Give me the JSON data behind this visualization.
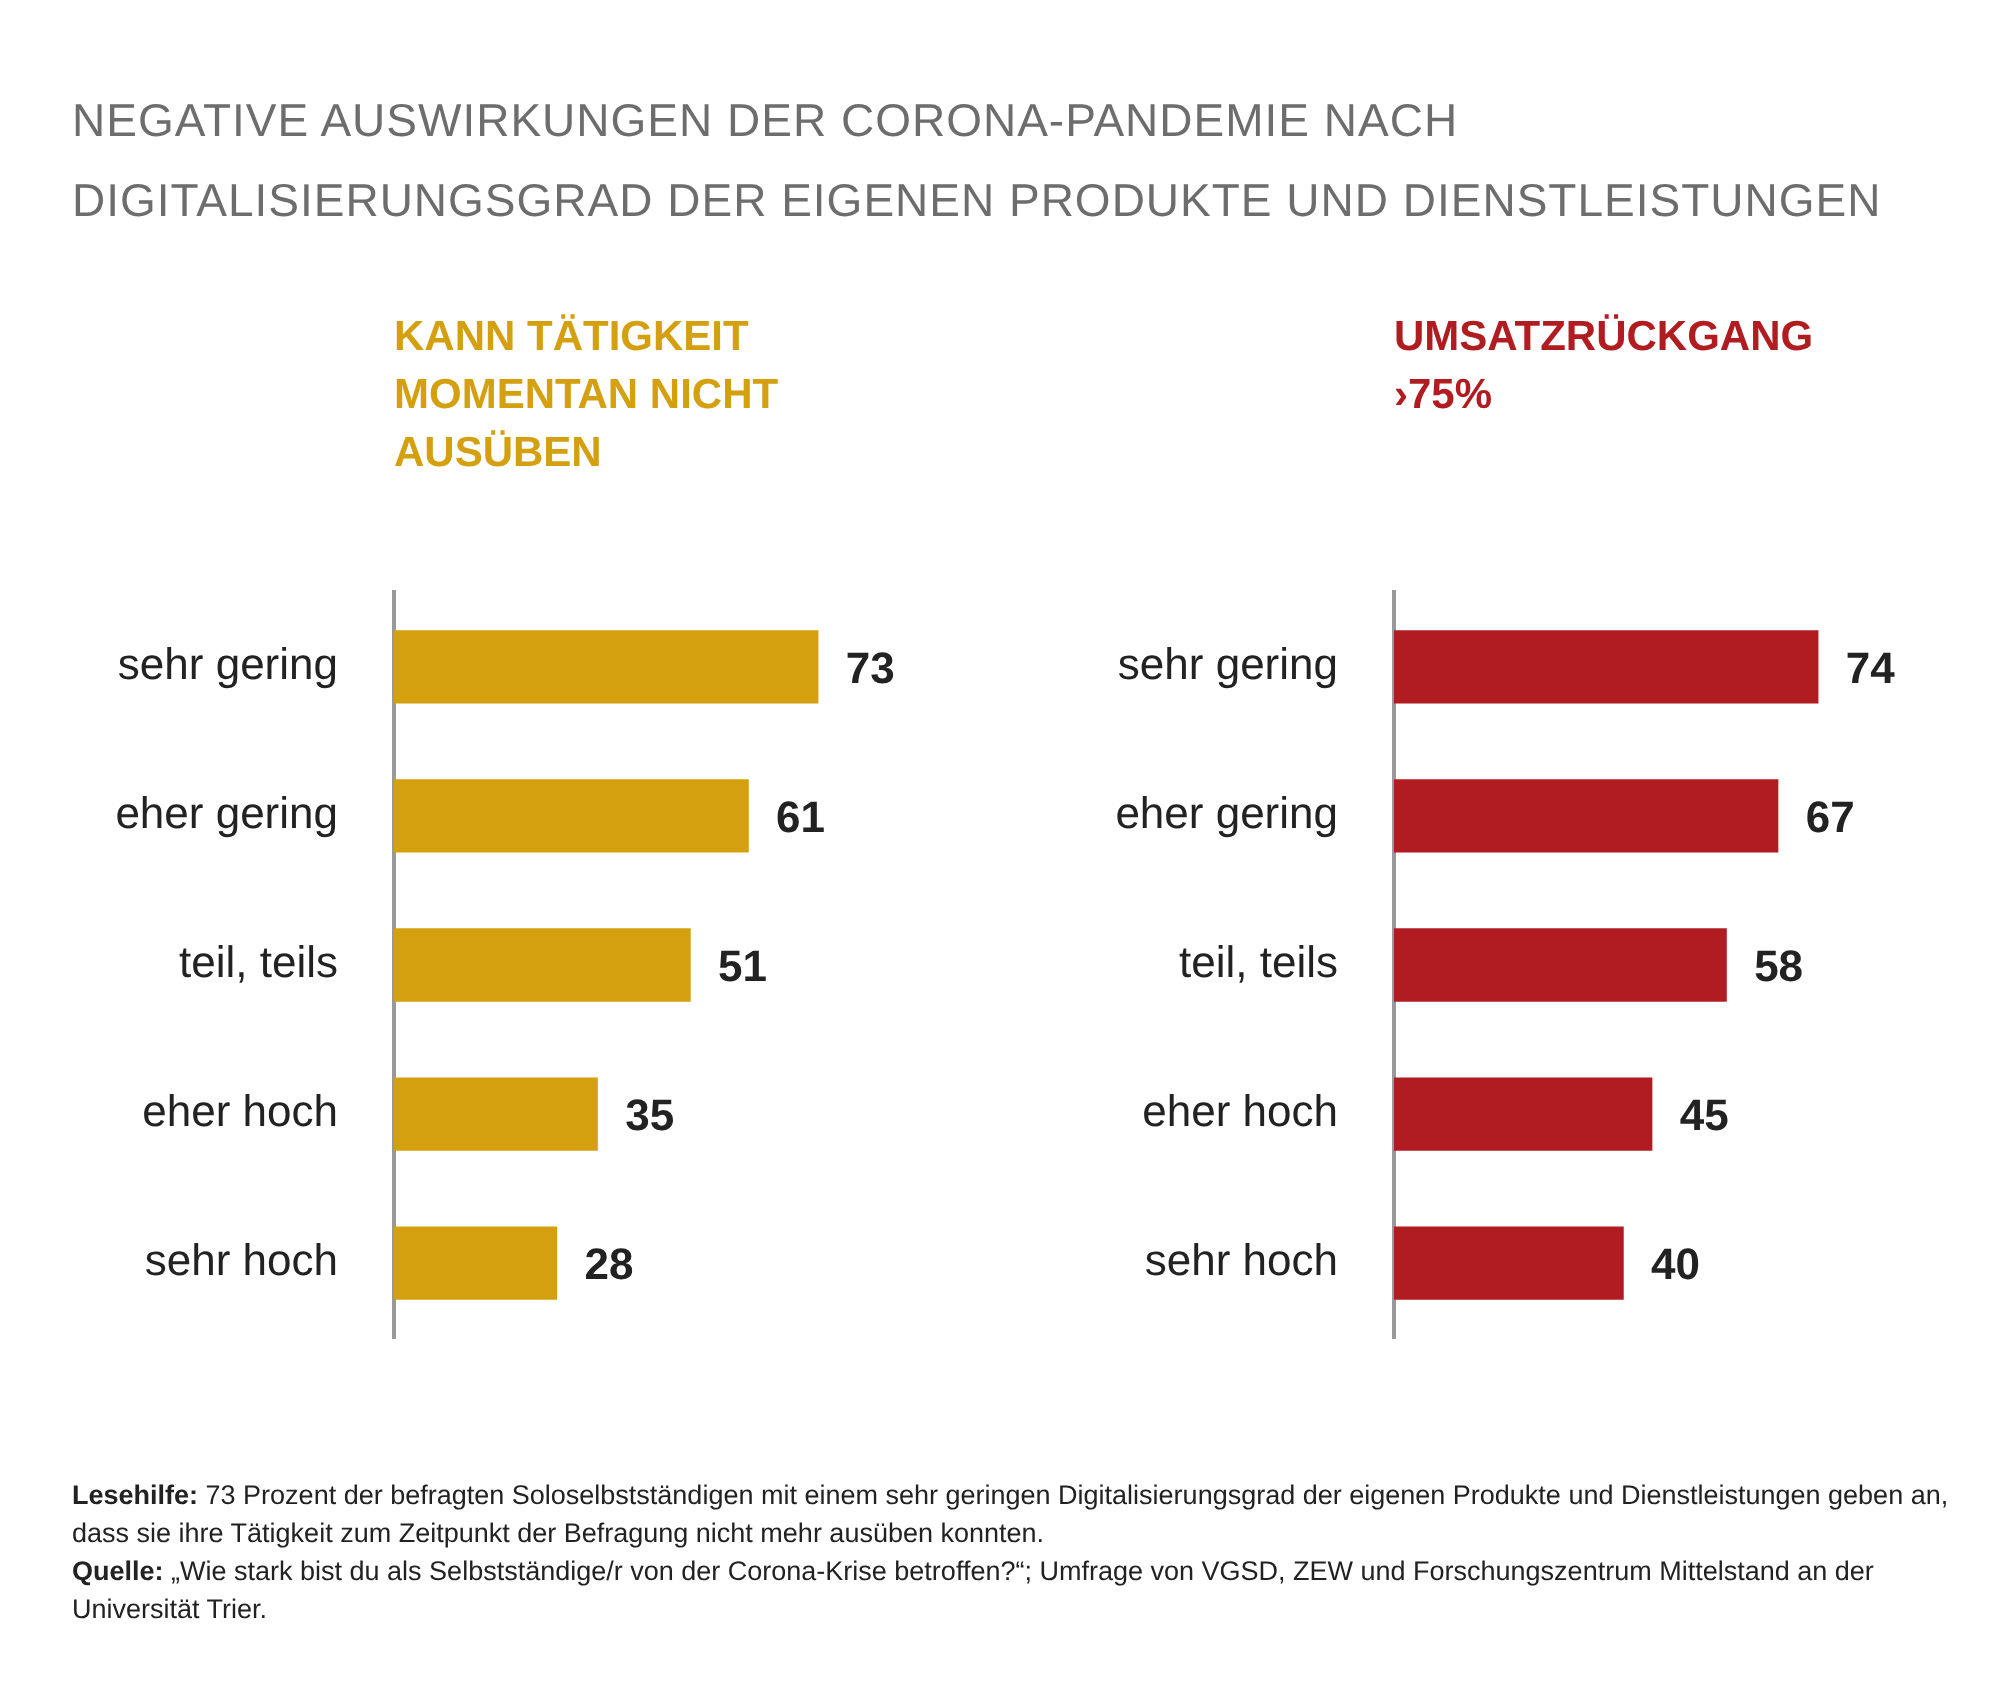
{
  "chart_data": [
    {
      "type": "bar",
      "orientation": "horizontal",
      "data_labels": true,
      "legend": false,
      "title": "NEGATIVE AUSWIRKUNGEN DER CORONA-PANDEMIE NACH DIGITALISIERUNGSGRAD DER EIGENEN PRODUKTE UND DIENSTLEISTUNGEN",
      "subtitle": "KANN TÄTIGKEIT MOMENTAN NICHT AUSÜBEN",
      "categories": [
        "sehr gering",
        "eher gering",
        "teil, teils",
        "eher hoch",
        "sehr hoch"
      ],
      "series": [
        {
          "color": "#d4a010",
          "values": [
            73,
            61,
            51,
            35,
            28
          ]
        }
      ]
    },
    {
      "type": "bar",
      "orientation": "horizontal",
      "data_labels": true,
      "legend": false,
      "subtitle": "UMSATZRÜCKGANG ›75%",
      "categories": [
        "sehr gering",
        "eher gering",
        "teil, teils",
        "eher hoch",
        "sehr hoch"
      ],
      "series": [
        {
          "color": "#b01c20",
          "values": [
            74,
            67,
            58,
            45,
            40
          ]
        }
      ],
      "annotations": [
        "Lesehilfe: 73 Prozent der befragten Soloselbstständigen mit einem sehr geringen Digitalisierungsgrad der eigenen Produkte und Dienstleistungen geben an, dass sie ihre Tätigkeit zum Zeitpunkt der Befragung nicht mehr ausüben konnten.",
        "Quelle: „Wie stark bist du als Selbstständige/r von der Corona-Krise betroffen?“; Umfrage von VGSD, ZEW und Forschungszentrum Mittelstand an der Universität Trier."
      ]
    }
  ]
}
